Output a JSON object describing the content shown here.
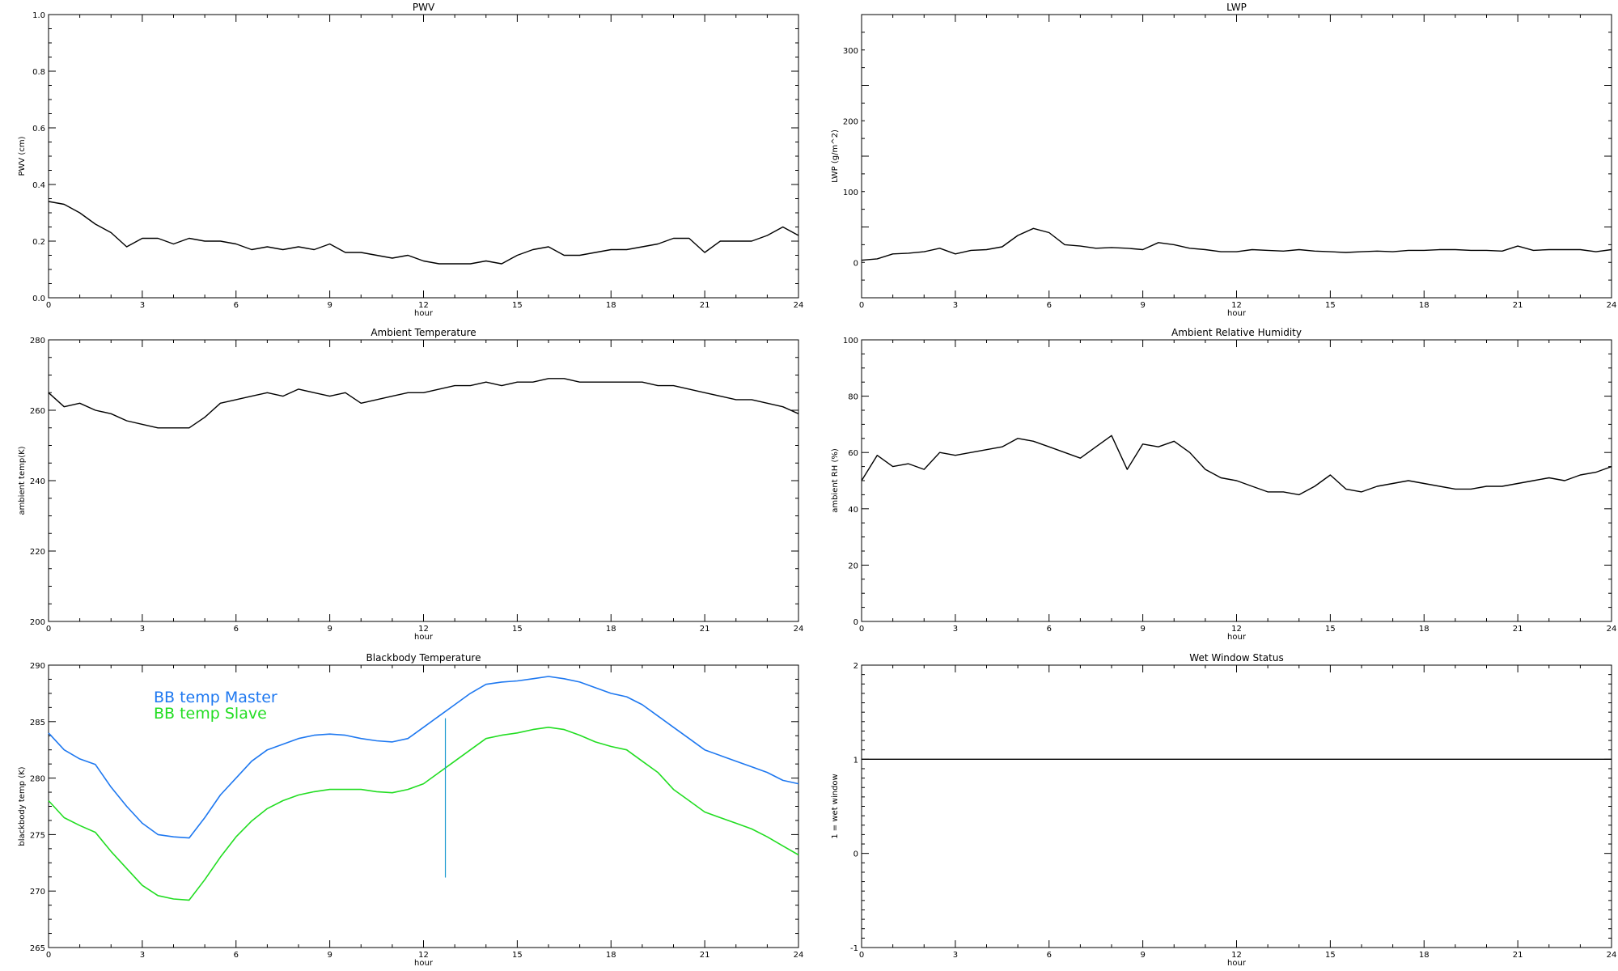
{
  "chart_data": [
    {
      "type": "line",
      "title": "PWV",
      "xlabel": "hour",
      "ylabel": "PWV (cm)",
      "xlim": [
        0,
        24
      ],
      "ylim": [
        0.0,
        1.0
      ],
      "xticks": [
        "0",
        "3",
        "6",
        "9",
        "12",
        "15",
        "18",
        "21",
        "24"
      ],
      "yticks": [
        "0.0",
        "0.2",
        "0.4",
        "0.6",
        "0.8",
        "1.0"
      ],
      "grid": false,
      "series": [
        {
          "color": "#000000",
          "x": [
            0,
            0.5,
            1,
            1.5,
            2,
            2.5,
            3,
            3.5,
            4,
            4.5,
            5,
            5.5,
            6,
            6.5,
            7,
            7.5,
            8,
            8.5,
            9,
            9.5,
            10,
            10.5,
            11,
            11.5,
            12,
            12.5,
            13,
            13.5,
            14,
            14.5,
            15,
            15.5,
            16,
            16.5,
            17,
            17.5,
            18,
            18.5,
            19,
            19.5,
            20,
            20.5,
            21,
            21.5,
            22,
            22.5,
            23,
            23.5,
            24
          ],
          "y": [
            0.34,
            0.33,
            0.3,
            0.26,
            0.23,
            0.18,
            0.21,
            0.21,
            0.19,
            0.21,
            0.2,
            0.2,
            0.19,
            0.17,
            0.18,
            0.17,
            0.18,
            0.17,
            0.19,
            0.16,
            0.16,
            0.15,
            0.14,
            0.15,
            0.13,
            0.12,
            0.12,
            0.12,
            0.13,
            0.12,
            0.15,
            0.17,
            0.18,
            0.15,
            0.15,
            0.16,
            0.17,
            0.17,
            0.18,
            0.19,
            0.21,
            0.21,
            0.16,
            0.2,
            0.2,
            0.2,
            0.22,
            0.25,
            0.22
          ]
        }
      ]
    },
    {
      "type": "line",
      "title": "LWP",
      "xlabel": "hour",
      "ylabel": "LWP (g/m^2)",
      "xlim": [
        0,
        24
      ],
      "ylim": [
        -50,
        350
      ],
      "xticks": [
        "0",
        "3",
        "6",
        "9",
        "12",
        "15",
        "18",
        "21",
        "24"
      ],
      "yticks": [
        "0",
        "100",
        "200",
        "300"
      ],
      "grid": false,
      "series": [
        {
          "color": "#000000",
          "x": [
            0,
            0.5,
            1,
            1.5,
            2,
            2.5,
            3,
            3.5,
            4,
            4.5,
            5,
            5.5,
            6,
            6.5,
            7,
            7.5,
            8,
            8.5,
            9,
            9.5,
            10,
            10.5,
            11,
            11.5,
            12,
            12.5,
            13,
            13.5,
            14,
            14.5,
            15,
            15.5,
            16,
            16.5,
            17,
            17.5,
            18,
            18.5,
            19,
            19.5,
            20,
            20.5,
            21,
            21.5,
            22,
            22.5,
            23,
            23.5,
            24
          ],
          "y": [
            3,
            5,
            12,
            13,
            15,
            20,
            12,
            17,
            18,
            22,
            38,
            48,
            42,
            25,
            23,
            20,
            21,
            20,
            18,
            28,
            25,
            20,
            18,
            15,
            15,
            18,
            17,
            16,
            18,
            16,
            15,
            14,
            15,
            16,
            15,
            17,
            17,
            18,
            18,
            17,
            17,
            16,
            23,
            17,
            18,
            18,
            18,
            15,
            18
          ]
        }
      ]
    },
    {
      "type": "line",
      "title": "Ambient Temperature",
      "xlabel": "hour",
      "ylabel": "ambient temp(K)",
      "xlim": [
        0,
        24
      ],
      "ylim": [
        200,
        280
      ],
      "xticks": [
        "0",
        "3",
        "6",
        "9",
        "12",
        "15",
        "18",
        "21",
        "24"
      ],
      "yticks": [
        "200",
        "220",
        "240",
        "260",
        "280"
      ],
      "grid": false,
      "series": [
        {
          "color": "#000000",
          "x": [
            0,
            0.5,
            1,
            1.5,
            2,
            2.5,
            3,
            3.5,
            4,
            4.5,
            5,
            5.5,
            6,
            6.5,
            7,
            7.5,
            8,
            8.5,
            9,
            9.5,
            10,
            10.5,
            11,
            11.5,
            12,
            12.5,
            13,
            13.5,
            14,
            14.5,
            15,
            15.5,
            16,
            16.5,
            17,
            17.5,
            18,
            18.5,
            19,
            19.5,
            20,
            20.5,
            21,
            21.5,
            22,
            22.5,
            23,
            23.5,
            24
          ],
          "y": [
            265,
            261,
            262,
            260,
            259,
            257,
            256,
            255,
            255,
            255,
            258,
            262,
            263,
            264,
            265,
            264,
            266,
            265,
            264,
            265,
            262,
            263,
            264,
            265,
            265,
            266,
            267,
            267,
            268,
            267,
            268,
            268,
            269,
            269,
            268,
            268,
            268,
            268,
            268,
            267,
            267,
            266,
            265,
            264,
            263,
            263,
            262,
            261,
            259
          ]
        }
      ]
    },
    {
      "type": "line",
      "title": "Ambient Relative Humidity",
      "xlabel": "hour",
      "ylabel": "ambient RH (%)",
      "xlim": [
        0,
        24
      ],
      "ylim": [
        0,
        100
      ],
      "xticks": [
        "0",
        "3",
        "6",
        "9",
        "12",
        "15",
        "18",
        "21",
        "24"
      ],
      "yticks": [
        "0",
        "20",
        "40",
        "60",
        "80",
        "100"
      ],
      "grid": false,
      "series": [
        {
          "color": "#000000",
          "x": [
            0,
            0.5,
            1,
            1.5,
            2,
            2.5,
            3,
            3.5,
            4,
            4.5,
            5,
            5.5,
            6,
            6.5,
            7,
            7.5,
            8,
            8.5,
            9,
            9.5,
            10,
            10.5,
            11,
            11.5,
            12,
            12.5,
            13,
            13.5,
            14,
            14.5,
            15,
            15.5,
            16,
            16.5,
            17,
            17.5,
            18,
            18.5,
            19,
            19.5,
            20,
            20.5,
            21,
            21.5,
            22,
            22.5,
            23,
            23.5,
            24
          ],
          "y": [
            50,
            59,
            55,
            56,
            54,
            60,
            59,
            60,
            61,
            62,
            65,
            64,
            62,
            60,
            58,
            62,
            66,
            54,
            63,
            62,
            64,
            60,
            54,
            51,
            50,
            48,
            46,
            46,
            45,
            48,
            52,
            47,
            46,
            48,
            49,
            50,
            49,
            48,
            47,
            47,
            48,
            48,
            49,
            50,
            51,
            50,
            52,
            53,
            55
          ]
        }
      ]
    },
    {
      "type": "line",
      "title": "Blackbody Temperature",
      "xlabel": "hour",
      "ylabel": "blackbody temp (K)",
      "xlim": [
        0,
        24
      ],
      "ylim": [
        265,
        290
      ],
      "xticks": [
        "0",
        "3",
        "6",
        "9",
        "12",
        "15",
        "18",
        "21",
        "24"
      ],
      "yticks": [
        "265",
        "270",
        "275",
        "280",
        "285",
        "290"
      ],
      "grid": false,
      "legend": "top-left",
      "series": [
        {
          "name": "BB temp Master",
          "color": "#1e78f0",
          "x": [
            0,
            0.5,
            1,
            1.5,
            2,
            2.5,
            3,
            3.5,
            4,
            4.5,
            5,
            5.5,
            6,
            6.5,
            7,
            7.5,
            8,
            8.5,
            9,
            9.5,
            10,
            10.5,
            11,
            11.5,
            12,
            12.5,
            13,
            13.5,
            14,
            14.5,
            15,
            15.5,
            16,
            16.5,
            17,
            17.5,
            18,
            18.5,
            19,
            19.5,
            20,
            20.5,
            21,
            21.5,
            22,
            22.5,
            23,
            23.5,
            24
          ],
          "y": [
            284.0,
            282.5,
            281.7,
            281.2,
            279.2,
            277.5,
            276.0,
            275.0,
            274.8,
            274.7,
            276.5,
            278.5,
            280.0,
            281.5,
            282.5,
            283.0,
            283.5,
            283.8,
            283.9,
            283.8,
            283.5,
            283.3,
            283.2,
            283.5,
            284.5,
            285.5,
            286.5,
            287.5,
            288.3,
            288.5,
            288.6,
            288.8,
            289.0,
            288.8,
            288.5,
            288.0,
            287.5,
            287.2,
            286.5,
            285.5,
            284.5,
            283.5,
            282.5,
            282.0,
            281.5,
            281.0,
            280.5,
            279.8,
            279.5
          ]
        },
        {
          "name": "BB temp Slave",
          "color": "#22dd22",
          "x": [
            0,
            0.5,
            1,
            1.5,
            2,
            2.5,
            3,
            3.5,
            4,
            4.5,
            5,
            5.5,
            6,
            6.5,
            7,
            7.5,
            8,
            8.5,
            9,
            9.5,
            10,
            10.5,
            11,
            11.5,
            12,
            12.5,
            13,
            13.5,
            14,
            14.5,
            15,
            15.5,
            16,
            16.5,
            17,
            17.5,
            18,
            18.5,
            19,
            19.5,
            20,
            20.5,
            21,
            21.5,
            22,
            22.5,
            23,
            23.5,
            24
          ],
          "y": [
            278.0,
            276.5,
            275.8,
            275.2,
            273.5,
            272.0,
            270.5,
            269.6,
            269.3,
            269.2,
            271.0,
            273.0,
            274.8,
            276.2,
            277.3,
            278.0,
            278.5,
            278.8,
            279.0,
            279.0,
            279.0,
            278.8,
            278.7,
            279.0,
            279.5,
            280.5,
            281.5,
            282.5,
            283.5,
            283.8,
            284.0,
            284.3,
            284.5,
            284.3,
            283.8,
            283.2,
            282.8,
            282.5,
            281.5,
            280.5,
            279.0,
            278.0,
            277.0,
            276.5,
            276.0,
            275.5,
            274.8,
            274.0,
            273.2
          ]
        }
      ],
      "spike": {
        "x": 12.7,
        "y_from": 271.2,
        "y_to": 285.3
      }
    },
    {
      "type": "line",
      "title": "Wet Window Status",
      "xlabel": "hour",
      "ylabel": "1 = wet window",
      "xlim": [
        0,
        24
      ],
      "ylim": [
        -1,
        2
      ],
      "xticks": [
        "0",
        "3",
        "6",
        "9",
        "12",
        "15",
        "18",
        "21",
        "24"
      ],
      "yticks": [
        "-1",
        "0",
        "1",
        "2"
      ],
      "grid": false,
      "series": [
        {
          "color": "#000000",
          "x": [
            0,
            24
          ],
          "y": [
            1,
            1
          ]
        }
      ]
    }
  ]
}
